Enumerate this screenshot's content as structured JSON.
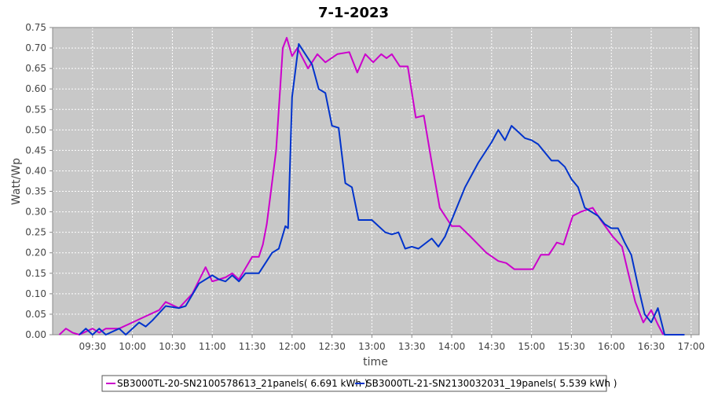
{
  "chart_data": {
    "type": "line",
    "title": "7-1-2023",
    "xlabel": "time",
    "ylabel": "Watt/Wp",
    "xlim": [
      "09:00",
      "17:06"
    ],
    "xticks": [
      "09:30",
      "10:00",
      "10:30",
      "11:00",
      "11:30",
      "12:00",
      "12:30",
      "13:00",
      "13:30",
      "14:00",
      "14:30",
      "15:00",
      "15:30",
      "16:00",
      "16:30",
      "17:00"
    ],
    "ylim": [
      0,
      0.75
    ],
    "yticks": [
      {
        "value": 0,
        "label": "0.00"
      },
      {
        "value": 0.05,
        "label": "0.05"
      },
      {
        "value": 0.1,
        "label": "0.10"
      },
      {
        "value": 0.15,
        "label": "0.15"
      },
      {
        "value": 0.2,
        "label": "0.20"
      },
      {
        "value": 0.25,
        "label": "0.25"
      },
      {
        "value": 0.3,
        "label": "0.30"
      },
      {
        "value": 0.35,
        "label": "0.35"
      },
      {
        "value": 0.4,
        "label": "0.40"
      },
      {
        "value": 0.45,
        "label": "0.45"
      },
      {
        "value": 0.5,
        "label": "0.50"
      },
      {
        "value": 0.55,
        "label": "0.55"
      },
      {
        "value": 0.6,
        "label": "0.60"
      },
      {
        "value": 0.65,
        "label": "0.65"
      },
      {
        "value": 0.7,
        "label": "0.70"
      },
      {
        "value": 0.75,
        "label": "0.75"
      }
    ],
    "grid": true,
    "series": [
      {
        "name": "SB3000TL-20-SN2100578613_21panels( 6.691 kWh )",
        "color": "#cc00cc",
        "x": [
          "09:05",
          "09:10",
          "09:15",
          "09:20",
          "09:30",
          "09:35",
          "09:40",
          "09:50",
          "10:00",
          "10:10",
          "10:20",
          "10:25",
          "10:35",
          "10:45",
          "10:55",
          "11:00",
          "11:10",
          "11:15",
          "11:20",
          "11:30",
          "11:35",
          "11:38",
          "11:41",
          "11:48",
          "11:53",
          "11:56",
          "12:00",
          "12:04",
          "12:12",
          "12:19",
          "12:25",
          "12:34",
          "12:43",
          "12:49",
          "12:55",
          "13:01",
          "13:07",
          "13:11",
          "13:15",
          "13:21",
          "13:27",
          "13:33",
          "13:39",
          "13:45",
          "13:51",
          "14:00",
          "14:06",
          "14:14",
          "14:26",
          "14:35",
          "14:41",
          "14:47",
          "14:55",
          "15:01",
          "15:07",
          "15:13",
          "15:19",
          "15:24",
          "15:31",
          "15:37",
          "15:46",
          "15:52",
          "16:01",
          "16:08",
          "16:12",
          "16:18",
          "16:24",
          "16:30",
          "16:35",
          "16:39"
        ],
        "values": [
          0.0,
          0.015,
          0.005,
          0.0,
          0.015,
          0.005,
          0.015,
          0.015,
          0.03,
          0.045,
          0.06,
          0.08,
          0.065,
          0.1,
          0.165,
          0.13,
          0.14,
          0.15,
          0.135,
          0.19,
          0.19,
          0.22,
          0.27,
          0.45,
          0.7,
          0.725,
          0.68,
          0.7,
          0.65,
          0.685,
          0.665,
          0.685,
          0.69,
          0.64,
          0.685,
          0.665,
          0.685,
          0.675,
          0.685,
          0.655,
          0.655,
          0.53,
          0.535,
          0.42,
          0.31,
          0.265,
          0.265,
          0.24,
          0.2,
          0.18,
          0.175,
          0.16,
          0.16,
          0.16,
          0.195,
          0.195,
          0.225,
          0.22,
          0.29,
          0.3,
          0.31,
          0.28,
          0.24,
          0.215,
          0.16,
          0.08,
          0.03,
          0.06,
          0.025,
          0.0
        ]
      },
      {
        "name": "SB3000TL-21-SN2130032031_19panels( 5.539 kWh )",
        "color": "#0033cc",
        "x": [
          "09:20",
          "09:25",
          "09:30",
          "09:35",
          "09:40",
          "09:50",
          "09:55",
          "10:05",
          "10:10",
          "10:15",
          "10:25",
          "10:35",
          "10:40",
          "10:50",
          "11:00",
          "11:05",
          "11:10",
          "11:15",
          "11:20",
          "11:25",
          "11:35",
          "11:45",
          "11:50",
          "11:55",
          "11:57",
          "12:00",
          "12:05",
          "12:10",
          "12:15",
          "12:20",
          "12:25",
          "12:30",
          "12:35",
          "12:40",
          "12:45",
          "12:50",
          "12:55",
          "13:00",
          "13:10",
          "13:15",
          "13:20",
          "13:25",
          "13:30",
          "13:35",
          "13:45",
          "13:50",
          "13:55",
          "14:00",
          "14:10",
          "14:20",
          "14:30",
          "14:35",
          "14:40",
          "14:45",
          "14:50",
          "14:55",
          "15:00",
          "15:05",
          "15:15",
          "15:20",
          "15:25",
          "15:30",
          "15:35",
          "15:40",
          "15:50",
          "15:55",
          "16:00",
          "16:05",
          "16:10",
          "16:15",
          "16:20",
          "16:25",
          "16:30",
          "16:35",
          "16:40",
          "16:55"
        ],
        "values": [
          0.0,
          0.015,
          0.0,
          0.015,
          0.0,
          0.015,
          0.0,
          0.03,
          0.02,
          0.035,
          0.07,
          0.065,
          0.07,
          0.125,
          0.145,
          0.135,
          0.13,
          0.145,
          0.13,
          0.15,
          0.15,
          0.2,
          0.21,
          0.265,
          0.26,
          0.58,
          0.71,
          0.685,
          0.66,
          0.6,
          0.59,
          0.51,
          0.505,
          0.37,
          0.36,
          0.28,
          0.28,
          0.28,
          0.25,
          0.245,
          0.25,
          0.21,
          0.215,
          0.21,
          0.235,
          0.215,
          0.24,
          0.28,
          0.36,
          0.42,
          0.47,
          0.5,
          0.475,
          0.51,
          0.495,
          0.48,
          0.475,
          0.465,
          0.425,
          0.425,
          0.41,
          0.38,
          0.36,
          0.31,
          0.29,
          0.27,
          0.26,
          0.26,
          0.225,
          0.195,
          0.12,
          0.05,
          0.03,
          0.065,
          0.0,
          0.0
        ]
      }
    ]
  }
}
